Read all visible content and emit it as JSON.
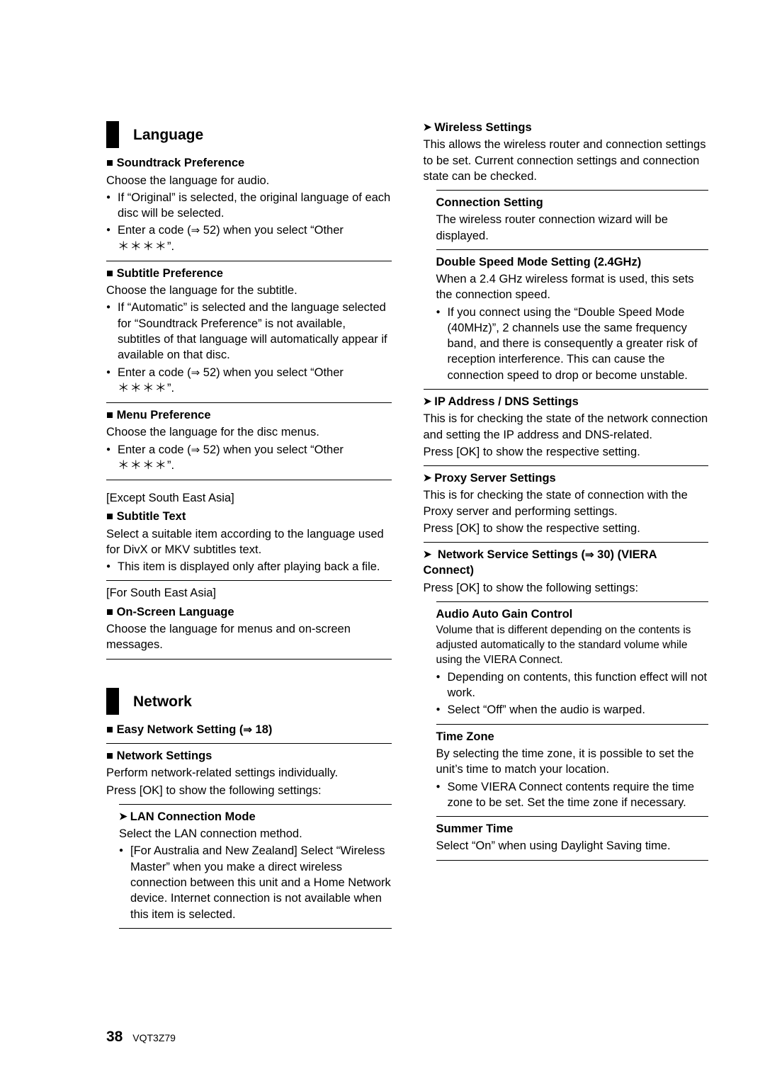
{
  "left": {
    "language": {
      "title": "Language",
      "soundtrack": {
        "heading": "Soundtrack Preference",
        "desc": "Choose the language for audio.",
        "b1": "If “Original” is selected, the original language of each disc will be selected.",
        "b2a": "Enter a code (",
        "b2b": " 52) when you select “Other ",
        "stars": "＊＊＊＊",
        "b2c": "”."
      },
      "subtitle_pref": {
        "heading": "Subtitle Preference",
        "desc": "Choose the language for the subtitle.",
        "b1": "If “Automatic” is selected and the language selected for “Soundtrack Preference” is not available, subtitles of that language will automatically appear if available on that disc.",
        "b2a": "Enter a code (",
        "b2b": " 52) when you select “Other ",
        "stars": "＊＊＊＊",
        "b2c": "”."
      },
      "menu_pref": {
        "heading": "Menu Preference",
        "desc": "Choose the language for the disc menus.",
        "b1a": "Enter a code (",
        "b1b": " 52) when you select “Other ",
        "stars": "＊＊＊＊",
        "b1c": "”."
      },
      "subtitle_text": {
        "tag": "[Except South East Asia]",
        "heading": "Subtitle Text",
        "desc": "Select a suitable item according to the language used for DivX or MKV subtitles text.",
        "b1": "This item is displayed only after playing back a file."
      },
      "onscreen": {
        "tag": "[For South East Asia]",
        "heading": "On-Screen Language",
        "desc": "Choose the language for menus and on-screen messages."
      }
    },
    "network": {
      "title": "Network",
      "easy": {
        "heading_a": "Easy Network Setting (",
        "heading_b": " 18)"
      },
      "settings": {
        "heading": "Network Settings",
        "desc1": "Perform network-related settings individually.",
        "desc2": "Press [OK] to show the following settings:",
        "lan": {
          "heading": "LAN Connection Mode",
          "desc": "Select the LAN connection method.",
          "b1": "[For Australia and New Zealand] Select “Wireless Master” when you make a direct wireless connection between this unit and a Home Network device. Internet connection is not available when this item is selected."
        }
      }
    }
  },
  "right": {
    "wireless": {
      "heading": "Wireless Settings",
      "desc": "This allows the wireless router and connection settings to be set. Current connection settings and connection state can be checked.",
      "conn": {
        "heading": "Connection Setting",
        "desc": "The wireless router connection wizard will be displayed."
      },
      "dbl": {
        "heading": "Double Speed Mode Setting (2.4GHz)",
        "desc": "When a 2.4 GHz wireless format is used, this sets the connection speed.",
        "b1": "If you connect using the “Double Speed Mode (40MHz)”, 2 channels use the same frequency band, and there is consequently a greater risk of reception interference. This can cause the connection speed to drop or become unstable."
      }
    },
    "ipdns": {
      "heading": "IP Address / DNS Settings",
      "desc1": "This is for checking the state of the network connection and setting the IP address and DNS-related.",
      "desc2": "Press [OK] to show the respective setting."
    },
    "proxy": {
      "heading": "Proxy Server Settings",
      "desc1": "This is for checking the state of connection with the Proxy server and performing settings.",
      "desc2": "Press [OK] to show the respective setting."
    },
    "netservice": {
      "heading_a": "Network Service Settings (",
      "heading_b": " 30) (VIERA Connect)",
      "desc": "Press [OK] to show the following settings:",
      "agc": {
        "heading": "Audio Auto Gain Control",
        "desc": "Volume that is different depending on the contents is adjusted automatically to the standard volume while using the VIERA Connect.",
        "b1": "Depending on contents, this function effect will not work.",
        "b2": "Select “Off” when the audio is warped."
      },
      "tz": {
        "heading": "Time Zone",
        "desc": "By selecting the time zone, it is possible to set the unit’s time to match your location.",
        "b1": "Some VIERA Connect contents require the time zone to be set. Set the time zone if necessary."
      },
      "summer": {
        "heading": "Summer Time",
        "desc": "Select “On” when using Daylight Saving time."
      }
    }
  },
  "footer": {
    "page": "38",
    "code": "VQT3Z79"
  }
}
